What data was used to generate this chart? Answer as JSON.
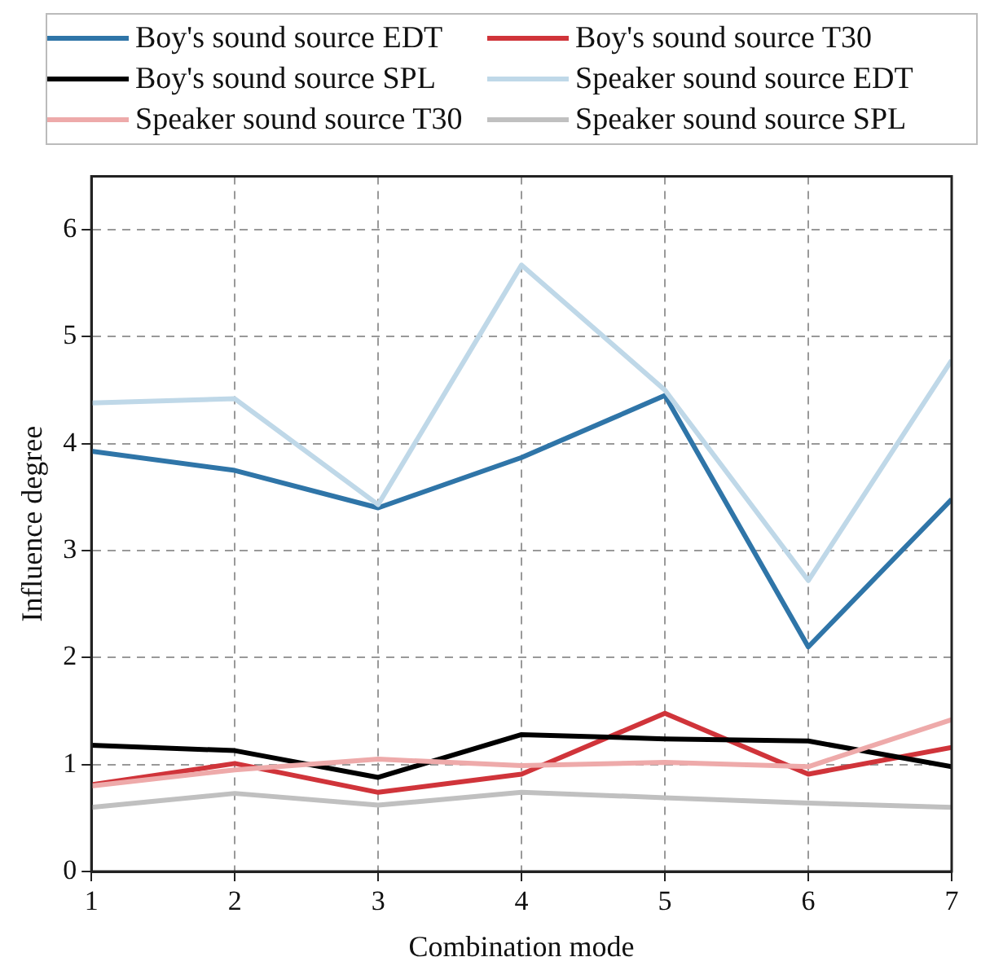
{
  "chart_data": {
    "type": "line",
    "xlabel": "Combination mode",
    "ylabel": "Influence degree",
    "x": [
      1,
      2,
      3,
      4,
      5,
      6,
      7
    ],
    "xlim": [
      1,
      7
    ],
    "xticks": [
      1,
      2,
      3,
      4,
      5,
      6,
      7
    ],
    "ylim": [
      0,
      6.5
    ],
    "yticks": [
      0,
      1,
      2,
      3,
      4,
      5,
      6
    ],
    "grid": true,
    "line_style": "solid",
    "marker": "none",
    "legend": "top",
    "series": [
      {
        "name": "Boy's sound source EDT",
        "color": "#2f75a8",
        "values": [
          3.93,
          3.75,
          3.4,
          3.87,
          4.45,
          2.1,
          3.48
        ]
      },
      {
        "name": "Boy's sound source T30",
        "color": "#d0343a",
        "values": [
          0.81,
          1.01,
          0.74,
          0.91,
          1.48,
          0.91,
          1.16
        ]
      },
      {
        "name": "Boy's sound source SPL",
        "color": "#000000",
        "values": [
          1.18,
          1.13,
          0.88,
          1.28,
          1.24,
          1.22,
          0.98
        ]
      },
      {
        "name": "Speaker sound source EDT",
        "color": "#bfd8e8",
        "values": [
          4.38,
          4.42,
          3.43,
          5.67,
          4.5,
          2.72,
          4.78
        ]
      },
      {
        "name": "Speaker sound source T30",
        "color": "#eeaaaa",
        "values": [
          0.8,
          0.95,
          1.05,
          0.99,
          1.02,
          0.98,
          1.42
        ]
      },
      {
        "name": "Speaker sound source SPL",
        "color": "#c0c0c0",
        "values": [
          0.6,
          0.73,
          0.62,
          0.74,
          0.69,
          0.64,
          0.6
        ]
      }
    ]
  }
}
